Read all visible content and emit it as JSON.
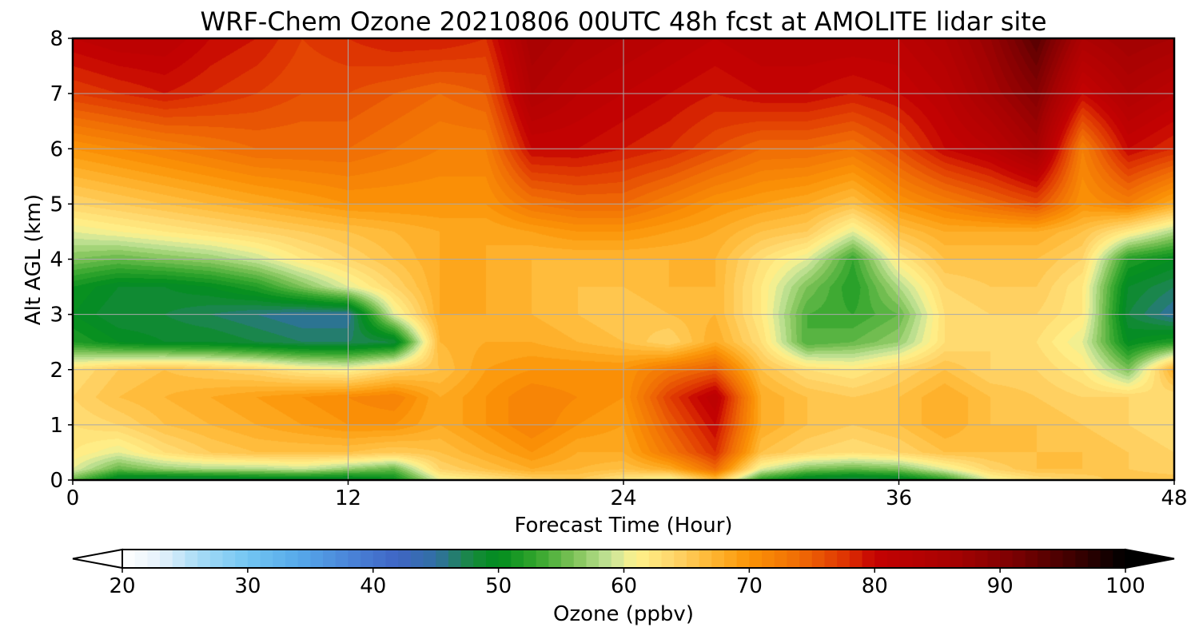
{
  "chart_data": {
    "type": "heatmap",
    "title": "WRF-Chem Ozone  20210806 00UTC 48h fcst at AMOLITE lidar site",
    "xlabel": "Forecast Time (Hour)",
    "ylabel": "Alt AGL (km)",
    "xlim": [
      0,
      48
    ],
    "ylim": [
      0,
      8
    ],
    "xticks": [
      0,
      12,
      24,
      36,
      48
    ],
    "yticks": [
      0,
      1,
      2,
      3,
      4,
      5,
      6,
      7,
      8
    ],
    "grid": true,
    "colorbar": {
      "label": "Ozone  (ppbv)",
      "min": 20,
      "max": 100,
      "ticks": [
        20,
        30,
        40,
        50,
        60,
        70,
        80,
        90,
        100
      ],
      "extend": "both",
      "orientation": "horizontal",
      "placement": "bottom",
      "stops": [
        [
          20,
          "#ffffff"
        ],
        [
          23,
          "#e6f2fb"
        ],
        [
          26,
          "#a9dcf6"
        ],
        [
          30,
          "#73c6f2"
        ],
        [
          34,
          "#56a9ea"
        ],
        [
          38,
          "#4a85d9"
        ],
        [
          42,
          "#3f65c4"
        ],
        [
          45,
          "#3170a3"
        ],
        [
          48,
          "#168a3a"
        ],
        [
          50,
          "#008c1e"
        ],
        [
          53,
          "#33a52c"
        ],
        [
          56,
          "#7dc257"
        ],
        [
          59,
          "#c9e59a"
        ],
        [
          61,
          "#fff28c"
        ],
        [
          64,
          "#ffd56a"
        ],
        [
          67,
          "#ffb733"
        ],
        [
          70,
          "#fb9406"
        ],
        [
          74,
          "#f06c05"
        ],
        [
          78,
          "#dc2e02"
        ],
        [
          80,
          "#c40202"
        ],
        [
          86,
          "#a80202"
        ],
        [
          91,
          "#7d0102"
        ],
        [
          96,
          "#3b0000"
        ],
        [
          100,
          "#000000"
        ]
      ]
    },
    "x": [
      0,
      2,
      4,
      6,
      8,
      10,
      12,
      14,
      16,
      18,
      20,
      22,
      24,
      26,
      28,
      30,
      32,
      34,
      36,
      38,
      40,
      42,
      44,
      46,
      48
    ],
    "y": [
      0,
      0.2,
      0.5,
      1,
      1.5,
      2,
      2.5,
      3,
      3.5,
      4,
      4.5,
      5,
      6,
      7,
      8
    ],
    "z": [
      [
        55,
        48,
        47,
        47,
        48,
        48,
        48,
        50,
        60,
        62,
        64,
        65,
        62,
        60,
        66,
        52,
        48,
        47,
        48,
        52,
        60,
        63,
        64,
        66,
        66
      ],
      [
        60,
        55,
        57,
        58,
        58,
        59,
        57,
        55,
        64,
        66,
        68,
        67,
        66,
        68,
        74,
        60,
        56,
        55,
        56,
        60,
        64,
        66,
        66,
        65,
        64
      ],
      [
        62,
        60,
        63,
        65,
        66,
        66,
        66,
        65,
        66,
        68,
        70,
        68,
        68,
        73,
        78,
        66,
        64,
        63,
        64,
        66,
        66,
        66,
        66,
        65,
        64
      ],
      [
        63,
        64,
        66,
        67,
        68,
        69,
        70,
        70,
        68,
        70,
        72,
        70,
        69,
        75,
        80,
        68,
        66,
        65,
        66,
        68,
        66,
        66,
        65,
        64,
        63
      ],
      [
        64,
        66,
        67,
        68,
        69,
        70,
        71,
        72,
        68,
        70,
        72,
        71,
        70,
        77,
        82,
        68,
        66,
        65,
        66,
        68,
        66,
        65,
        64,
        64,
        63
      ],
      [
        63,
        65,
        66,
        65,
        64,
        62,
        61,
        64,
        66,
        69,
        70,
        70,
        70,
        73,
        75,
        66,
        63,
        62,
        64,
        66,
        64,
        64,
        62,
        56,
        68
      ],
      [
        52,
        50,
        49,
        49,
        48,
        47,
        47,
        48,
        67,
        68,
        68,
        67,
        66,
        64,
        68,
        63,
        54,
        55,
        57,
        63,
        64,
        63,
        60,
        50,
        52
      ],
      [
        50,
        48,
        48,
        47,
        46,
        45,
        45,
        60,
        68,
        68,
        67,
        66,
        65,
        66,
        67,
        62,
        54,
        53,
        55,
        63,
        64,
        64,
        62,
        48,
        45
      ],
      [
        51,
        49,
        49,
        50,
        52,
        56,
        60,
        64,
        68,
        68,
        67,
        66,
        66,
        67,
        67,
        62,
        56,
        52,
        58,
        64,
        65,
        65,
        62,
        49,
        47
      ],
      [
        56,
        55,
        56,
        57,
        59,
        62,
        64,
        66,
        68,
        68,
        67,
        67,
        67,
        67,
        67,
        63,
        60,
        53,
        62,
        66,
        66,
        66,
        64,
        52,
        50
      ],
      [
        60,
        61,
        62,
        63,
        64,
        65,
        66,
        67,
        68,
        68,
        69,
        70,
        70,
        69,
        68,
        66,
        65,
        60,
        66,
        68,
        68,
        68,
        66,
        62,
        58
      ],
      [
        64,
        65,
        66,
        67,
        68,
        69,
        70,
        70,
        70,
        70,
        73,
        74,
        74,
        72,
        70,
        69,
        68,
        66,
        70,
        72,
        74,
        76,
        70,
        72,
        68
      ],
      [
        70,
        71,
        72,
        73,
        74,
        74,
        74,
        73,
        72,
        72,
        80,
        80,
        79,
        78,
        76,
        74,
        74,
        73,
        76,
        80,
        82,
        86,
        72,
        80,
        78
      ],
      [
        77,
        78,
        79,
        78,
        77,
        76,
        76,
        75,
        74,
        75,
        84,
        82,
        81,
        80,
        79,
        80,
        80,
        79,
        80,
        82,
        86,
        90,
        80,
        84,
        82
      ],
      [
        81,
        82,
        82,
        80,
        79,
        77,
        78,
        79,
        79,
        78,
        86,
        84,
        83,
        82,
        81,
        82,
        82,
        82,
        82,
        84,
        88,
        94,
        85,
        87,
        86
      ]
    ]
  }
}
